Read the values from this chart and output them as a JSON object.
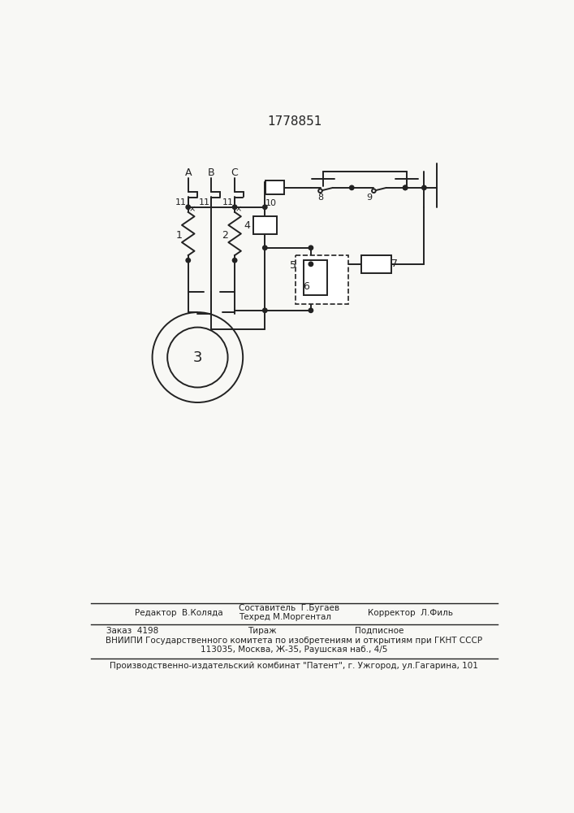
{
  "title": "1778851",
  "bg_color": "#f8f8f5",
  "editor_line": "Редактор  В.Коляда",
  "compiler_line1": "Составитель  Г.Бугаев",
  "compiler_line2": "Техред М.Моргентал",
  "corrector_line": "Корректор  Л.Филь",
  "order_line": "Заказ  4198",
  "tirazh_line": "Тираж",
  "podpisnoe_line": "Подписное",
  "vniiipi_line1": "ВНИИПИ Государственного комитета по изобретениям и открытиям при ГКНТ СССР",
  "vniiipi_line2": "113035, Москва, Ж-35, Раушская наб., 4/5",
  "factory_line": "Производственно-издательский комбинат \"Патент\", г. Ужгород, ул.Гагарина, 101"
}
